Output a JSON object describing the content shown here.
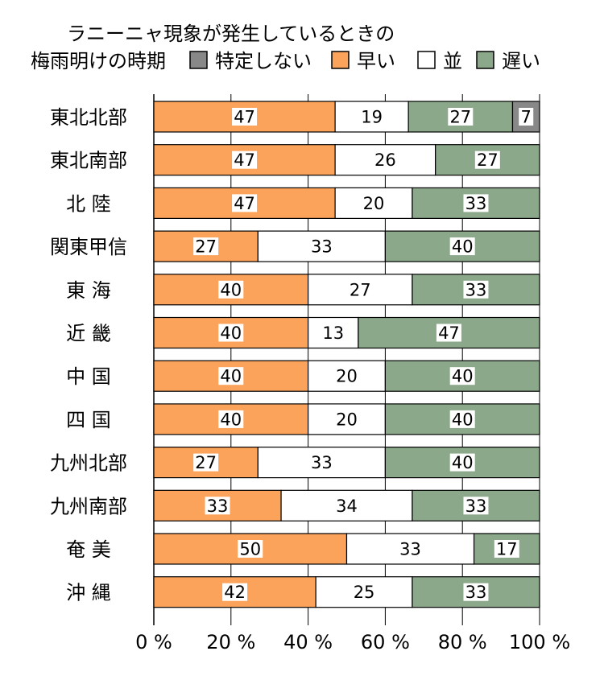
{
  "title_line1": "ラニーニャ現象が発生しているときの",
  "title_line2": "梅雨明けの時期",
  "chart_data": {
    "type": "bar",
    "orientation": "horizontal",
    "stacked": true,
    "unit": "%",
    "xlim": [
      0,
      100
    ],
    "xticks": [
      0,
      20,
      40,
      60,
      80,
      100
    ],
    "xtick_labels": [
      "0 %",
      "20 %",
      "40 %",
      "60 %",
      "80 %",
      "100 %"
    ],
    "grid": true,
    "legend_position": "top",
    "categories": [
      "東北北部",
      "東北南部",
      "北 陸",
      "関東甲信",
      "東 海",
      "近 畿",
      "中 国",
      "四 国",
      "九州北部",
      "九州南部",
      "奄 美",
      "沖 縄"
    ],
    "series": [
      {
        "name": "早い",
        "color": "#fca35b",
        "values": [
          47,
          47,
          47,
          27,
          40,
          40,
          40,
          40,
          27,
          33,
          50,
          42
        ]
      },
      {
        "name": "並",
        "color": "#ffffff",
        "values": [
          19,
          26,
          20,
          33,
          27,
          13,
          20,
          20,
          33,
          34,
          33,
          25
        ]
      },
      {
        "name": "遅い",
        "color": "#8ba88a",
        "values": [
          27,
          27,
          33,
          40,
          33,
          47,
          40,
          40,
          40,
          33,
          17,
          33
        ]
      },
      {
        "name": "特定しない",
        "color": "#888888",
        "values": [
          7,
          0,
          0,
          0,
          0,
          0,
          0,
          0,
          0,
          0,
          0,
          0
        ]
      }
    ],
    "legend_order": [
      "特定しない",
      "早い",
      "並",
      "遅い"
    ]
  }
}
